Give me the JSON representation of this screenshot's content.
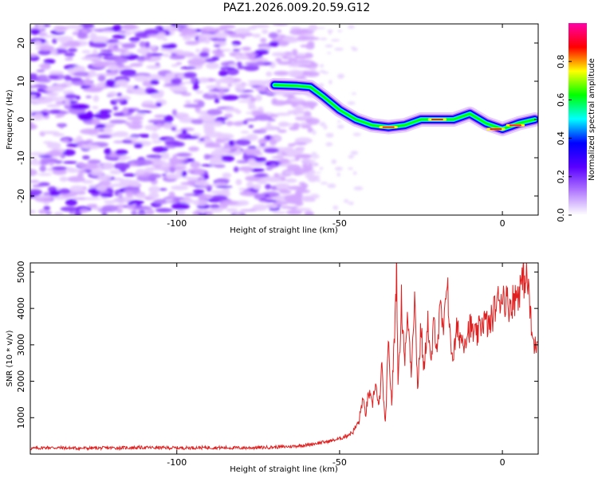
{
  "title": "PAZ1.2026.009.20.59.G12",
  "chart_data": [
    {
      "type": "heatmap",
      "xlabel": "Height of straight line (km)",
      "ylabel": "Frequency (Hz)",
      "xlim": [
        -145,
        11
      ],
      "ylim": [
        -25,
        25
      ],
      "xticks": [
        -100,
        -50,
        0
      ],
      "xtick_labels": [
        "-100",
        "-50",
        "0"
      ],
      "yticks": [
        -20,
        -10,
        0,
        10,
        20
      ],
      "ytick_labels": [
        "-20",
        "-10",
        "0",
        "10",
        "20"
      ],
      "colorbar": {
        "label": "Normalized spectral amplitude",
        "range": [
          0,
          1
        ],
        "ticks": [
          0,
          0.2,
          0.4,
          0.6,
          0.8
        ],
        "tick_labels": [
          "0.0",
          "0.2",
          "0.4",
          "0.6",
          "0.8"
        ],
        "colors": [
          "#ffffff",
          "#b27aff",
          "#5a00ff",
          "#0000ff",
          "#00ffff",
          "#00ff00",
          "#ffff00",
          "#ff0000",
          "#ff00aa"
        ]
      },
      "ridge": {
        "x": [
          -70,
          -63,
          -59,
          -55,
          -50,
          -45,
          -40,
          -35,
          -30,
          -25,
          -20,
          -15,
          -10,
          -5,
          0,
          5,
          10
        ],
        "y": [
          9,
          8.8,
          8.5,
          6,
          2.5,
          0,
          -1.5,
          -2,
          -1.5,
          0,
          0,
          0,
          1.5,
          -1,
          -2.5,
          -1,
          0
        ]
      }
    },
    {
      "type": "line",
      "xlabel": "Height of straight line (km)",
      "ylabel": "SNR (10 * v/v)",
      "xlim": [
        -145,
        11
      ],
      "ylim": [
        0,
        5250
      ],
      "xticks": [
        -100,
        -50,
        0
      ],
      "xtick_labels": [
        "-100",
        "-50",
        "0"
      ],
      "yticks": [
        1000,
        2000,
        3000,
        4000,
        5000
      ],
      "ytick_labels": [
        "1000",
        "2000",
        "3000",
        "4000",
        "5000"
      ],
      "color": "#e02020",
      "series": [
        {
          "name": "SNR",
          "x": [
            -145,
            -140,
            -130,
            -120,
            -110,
            -100,
            -90,
            -80,
            -70,
            -65,
            -60,
            -57,
            -54,
            -52,
            -50,
            -48,
            -46,
            -44,
            -43,
            -42,
            -41,
            -40,
            -39,
            -38,
            -37,
            -36,
            -35,
            -34,
            -33,
            -32.5,
            -32,
            -31,
            -30,
            -29,
            -28,
            -27,
            -26,
            -25,
            -24,
            -23,
            -22,
            -21,
            -20,
            -19,
            -18,
            -17,
            -16,
            -15,
            -14,
            -12,
            -10,
            -8,
            -6,
            -4,
            -2,
            0,
            2,
            4,
            6,
            7,
            8,
            9,
            10,
            11
          ],
          "y": [
            150,
            180,
            160,
            170,
            180,
            170,
            180,
            170,
            190,
            210,
            250,
            300,
            340,
            380,
            420,
            500,
            600,
            900,
            1500,
            1100,
            1700,
            1300,
            2000,
            1200,
            2400,
            700,
            3000,
            1400,
            3600,
            5200,
            1800,
            4200,
            2600,
            3800,
            2300,
            4400,
            1800,
            3500,
            2200,
            3800,
            2400,
            3600,
            3000,
            4000,
            3200,
            5100,
            3000,
            2700,
            3400,
            3100,
            3500,
            3200,
            3700,
            3500,
            4100,
            4400,
            4100,
            4300,
            4700,
            4900,
            4600,
            3300,
            2900,
            3300
          ]
        }
      ]
    }
  ]
}
